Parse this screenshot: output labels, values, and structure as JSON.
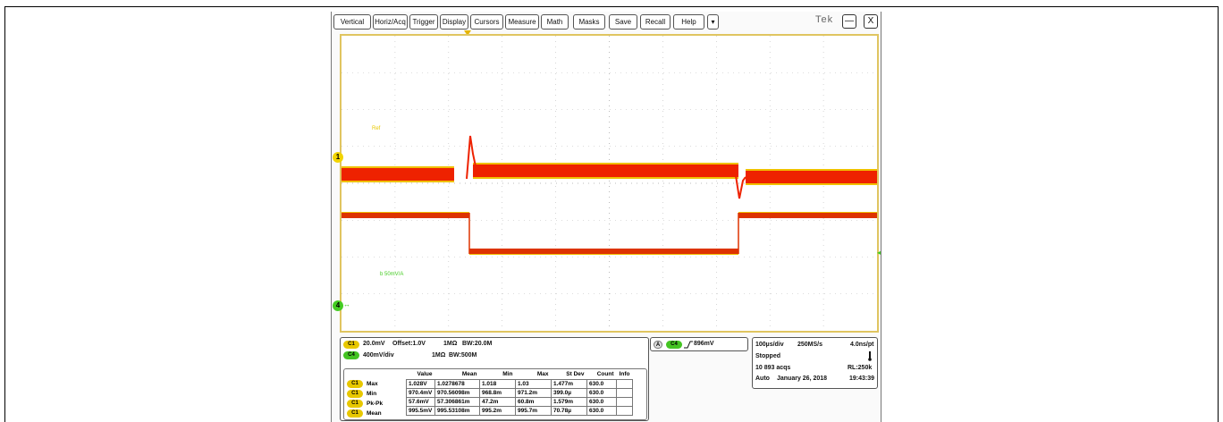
{
  "menu": [
    "Vertical",
    "Horiz/Acq",
    "Trigger",
    "Display",
    "Cursors",
    "Measure",
    "Math",
    "Masks",
    "Save",
    "Recall",
    "Help",
    "▾"
  ],
  "brand": "Tek",
  "window_buttons": {
    "minimize": "—",
    "close": "X"
  },
  "markers": {
    "ch1": "1",
    "ch4": "4",
    "ch4_arrow": "↔",
    "ch4_right": "◂"
  },
  "labels": {
    "ch1_label": "Ref",
    "ch4_label": "b 50mV/A"
  },
  "channels": {
    "c1_pill": "C1",
    "c4_pill": "C4",
    "c1_scale": "20.0mV",
    "c1_offset": "Offset:1.0V",
    "c1_imp": "1MΩ",
    "c1_bw": "BW:20.0M",
    "c4_scale": "400mV/div",
    "c4_imp": "1MΩ",
    "c4_bw": "BW:500M"
  },
  "trigger": {
    "a_pill": "A",
    "src_pill": "C4",
    "slope_icon": "rising-edge",
    "level": "896mV"
  },
  "acquisition": {
    "time_div": "100µs/div",
    "sample_rate": "250MS/s",
    "res": "4.0ns/pt",
    "state": "Stopped",
    "acqs": "10 893 acqs",
    "rl": "RL:250k",
    "mode": "Auto",
    "date": "January 26, 2018",
    "time": "19:43:39"
  },
  "measurements": {
    "headers": [
      "Value",
      "Mean",
      "Min",
      "Max",
      "St Dev",
      "Count",
      "Info"
    ],
    "rows": [
      {
        "ch": "C1",
        "name": "Max",
        "cells": [
          "1.028V",
          "1.0278678",
          "1.018",
          "1.03",
          "1.477m",
          "630.0",
          ""
        ]
      },
      {
        "ch": "C1",
        "name": "Min",
        "cells": [
          "970.4mV",
          "970.56098m",
          "968.8m",
          "971.2m",
          "399.0µ",
          "630.0",
          ""
        ]
      },
      {
        "ch": "C1",
        "name": "Pk-Pk",
        "cells": [
          "57.6mV",
          "57.306861m",
          "47.2m",
          "60.8m",
          "1.579m",
          "630.0",
          ""
        ]
      },
      {
        "ch": "C1",
        "name": "Mean",
        "cells": [
          "995.5mV",
          "995.53108m",
          "995.2m",
          "995.7m",
          "70.78µ",
          "630.0",
          ""
        ]
      }
    ]
  },
  "colors": {
    "ch1": "#ee2200",
    "ch1_edge": "#f0c000",
    "ch4": "#dd3300",
    "grid_border": "#e0c560"
  }
}
